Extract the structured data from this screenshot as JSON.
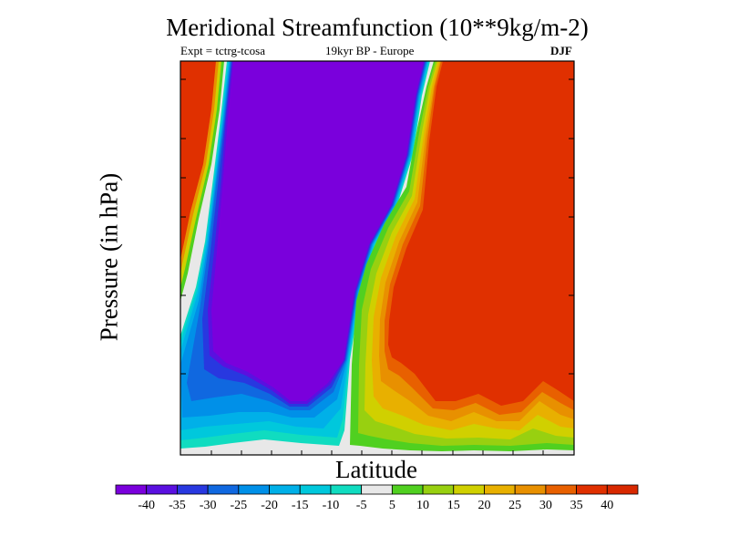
{
  "chart_data": {
    "type": "heatmap",
    "title": "Meridional Streamfunction (10**9kg/m-2)",
    "subtitle_left": "Expt = tctrg-tcosa",
    "subtitle_center": "19kyr BP - Europe",
    "season": "DJF",
    "xlabel": "Latitude",
    "ylabel": "Pressure (in hPa)",
    "colorbar": {
      "labels": [
        "-40",
        "-35",
        "-30",
        "-25",
        "-20",
        "-15",
        "-10",
        "-5",
        "5",
        "10",
        "15",
        "20",
        "25",
        "30",
        "35",
        "40"
      ],
      "colors": [
        "#7a00dc",
        "#5a10e0",
        "#2838e0",
        "#1068e0",
        "#0090e8",
        "#00b0e8",
        "#00c8dc",
        "#10dcc0",
        "#e8e8e8",
        "#50d020",
        "#98d010",
        "#d0d000",
        "#e8b000",
        "#e89000",
        "#e86000",
        "#e03000",
        "#d82800"
      ]
    },
    "regions": [
      {
        "name": "southern positive cell",
        "level": "40"
      },
      {
        "name": "central negative cell",
        "level": "-40"
      },
      {
        "name": "northern positive cell",
        "level": "40"
      }
    ]
  }
}
